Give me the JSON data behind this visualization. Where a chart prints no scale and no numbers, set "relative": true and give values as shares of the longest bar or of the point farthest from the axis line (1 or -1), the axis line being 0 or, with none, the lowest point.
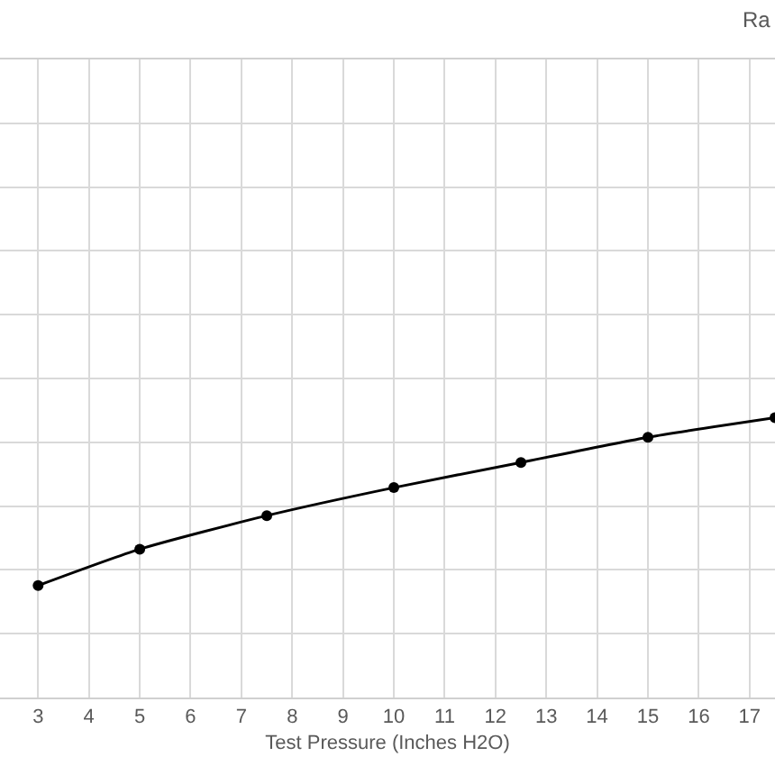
{
  "chart_data": {
    "type": "line",
    "xlabel": "Test Pressure (Inches H2O)",
    "annotations": [
      "Ra"
    ],
    "x": [
      3,
      5,
      7.5,
      10,
      12.5,
      15,
      17.5
    ],
    "values": [
      0.4,
      0.53,
      0.65,
      0.75,
      0.84,
      0.93,
      1
    ],
    "color": "#000000",
    "relative": true,
    "xlim": [
      2.25,
      17.5
    ],
    "xticks": [
      3,
      4,
      5,
      6,
      7,
      8,
      9,
      10,
      11,
      12,
      13,
      14,
      15,
      16,
      17
    ],
    "grid": true,
    "marker": "circle",
    "line_style": "solid",
    "tick_labels": "x"
  }
}
